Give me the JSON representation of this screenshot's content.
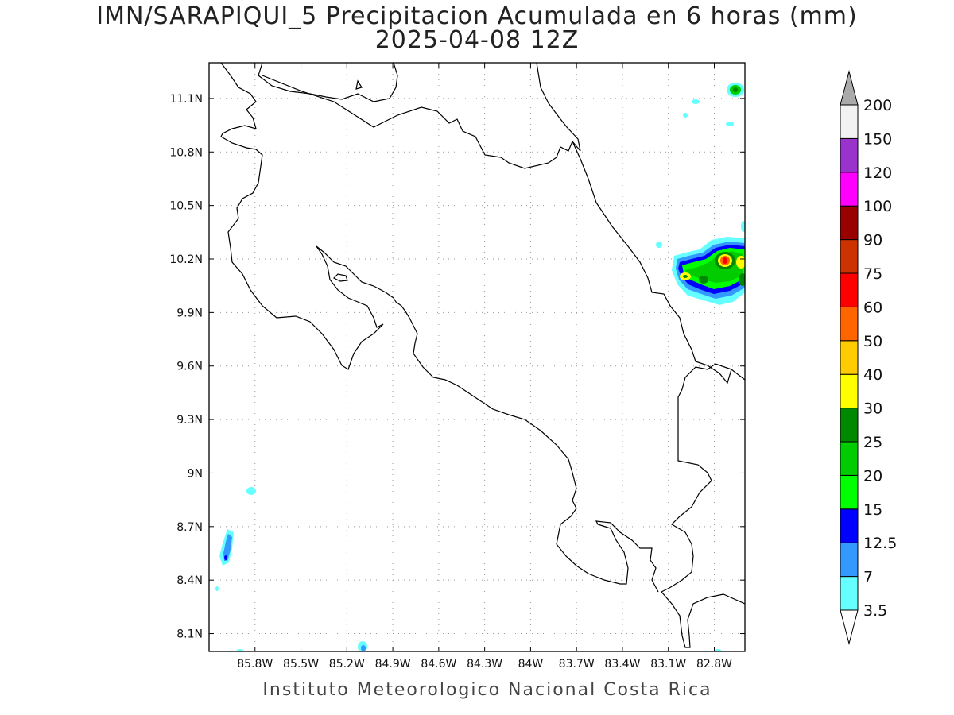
{
  "title": {
    "line1": "IMN/SARAPIQUI_5 Precipitacion Acumulada en 6 horas (mm)",
    "line2": "2025-04-08 12Z"
  },
  "footer": "Instituto Meteorologico Nacional Costa Rica",
  "map": {
    "lon_range": [
      -86.1,
      -82.6
    ],
    "lat_range": [
      8.0,
      11.3
    ],
    "lon_ticks": [
      "85.8W",
      "85.5W",
      "85.2W",
      "84.9W",
      "84.6W",
      "84.3W",
      "84W",
      "83.7W",
      "83.4W",
      "83.1W",
      "82.8W"
    ],
    "lat_ticks": [
      "11.1N",
      "10.8N",
      "10.5N",
      "10.2N",
      "9.9N",
      "9.6N",
      "9.3N",
      "9N",
      "8.7N",
      "8.4N",
      "8.1N"
    ],
    "gridlines": true,
    "coastline_color": "#000000"
  },
  "colorbar": {
    "levels": [
      "3.5",
      "7",
      "12.5",
      "15",
      "20",
      "25",
      "30",
      "40",
      "50",
      "60",
      "75",
      "90",
      "100",
      "120",
      "150",
      "200"
    ],
    "colors": [
      "#66ffff",
      "#3399ff",
      "#0000ff",
      "#00ff00",
      "#00cc00",
      "#008800",
      "#ffff00",
      "#ffcc00",
      "#ff6600",
      "#ff0000",
      "#cc3300",
      "#990000",
      "#ff00ff",
      "#9933cc",
      "#f2f2f2",
      "#aaaaaa"
    ],
    "top_arrow_color": "#aaaaaa",
    "bottom_arrow_color": "#ffffff"
  }
}
